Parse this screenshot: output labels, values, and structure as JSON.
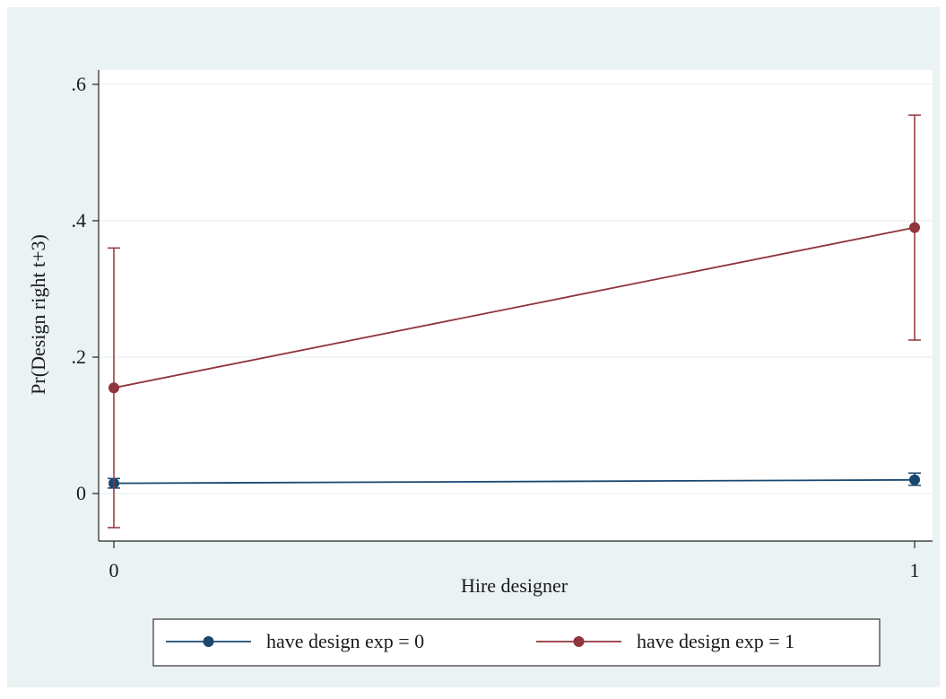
{
  "colors": {
    "outer_background": "#eaf2f3",
    "plot_background": "#ffffff",
    "grid": "#e9f0f1",
    "axis": "#222222",
    "series_0": "#1a476f",
    "series_1": "#90353b"
  },
  "chart_data": {
    "type": "line",
    "title": "",
    "xlabel": "Hire designer",
    "ylabel": "Pr(Design right t+3)",
    "x": [
      0,
      1
    ],
    "xticks": [
      {
        "value": 0,
        "label": "0"
      },
      {
        "value": 1,
        "label": "1"
      }
    ],
    "yticks": [
      {
        "value": 0,
        "label": "0"
      },
      {
        "value": 0.2,
        "label": ".2"
      },
      {
        "value": 0.4,
        "label": ".4"
      },
      {
        "value": 0.6,
        "label": ".6"
      }
    ],
    "xlim": [
      0,
      1
    ],
    "ylim": [
      -0.07,
      0.6
    ],
    "grid": true,
    "legend_position": "bottom",
    "series": [
      {
        "name": "have design exp = 0",
        "color": "#1a476f",
        "values": [
          0.015,
          0.02
        ],
        "ci_low": [
          0.008,
          0.012
        ],
        "ci_high": [
          0.022,
          0.03
        ]
      },
      {
        "name": "have design exp = 1",
        "color": "#90353b",
        "values": [
          0.155,
          0.39
        ],
        "ci_low": [
          -0.05,
          0.225
        ],
        "ci_high": [
          0.36,
          0.555
        ]
      }
    ]
  }
}
